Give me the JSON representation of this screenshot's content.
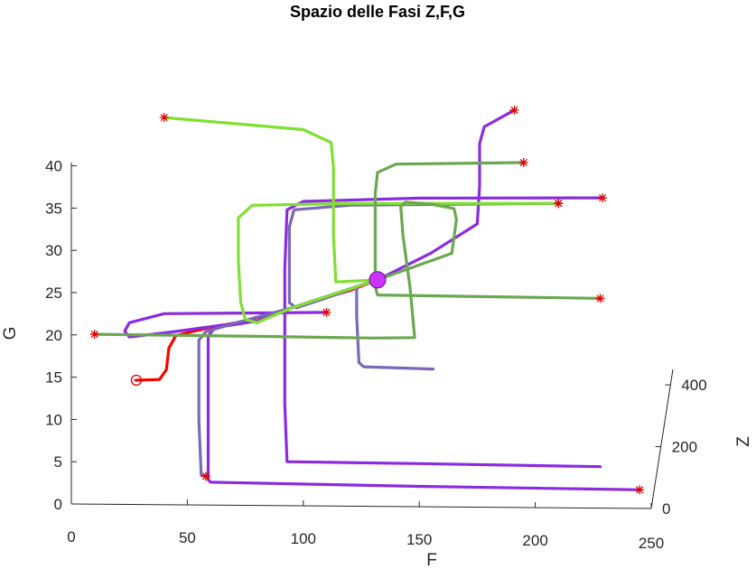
{
  "chart_data": {
    "type": "line",
    "projection": "3d",
    "title": "Spazio delle Fasi Z,F,G",
    "xlabel": "F",
    "ylabel": "G",
    "zlabel": "Z",
    "xlim": [
      0,
      250
    ],
    "ylim": [
      0,
      45
    ],
    "zlim": [
      0,
      450
    ],
    "xticks": [
      "0",
      "50",
      "100",
      "150",
      "200",
      "250"
    ],
    "yticks": [
      "0",
      "5",
      "10",
      "15",
      "20",
      "25",
      "30",
      "35",
      "40"
    ],
    "zticks": [
      "0",
      "200",
      "400"
    ],
    "grid": false,
    "equilibrium": {
      "F": 132,
      "G": 26.8,
      "color": "#cc33ff"
    },
    "series": [
      {
        "color": "#ff0000",
        "start": "circle",
        "points": [
          [
            28,
            14.7
          ],
          [
            38,
            14.8
          ],
          [
            41,
            16
          ],
          [
            42,
            18.5
          ],
          [
            45,
            20
          ],
          [
            52,
            20.5
          ],
          [
            60,
            21
          ],
          [
            75,
            21.8
          ],
          [
            95,
            23.4
          ],
          [
            120,
            25.5
          ],
          [
            132,
            26.8
          ]
        ]
      },
      {
        "color": "#8a2be2",
        "start": "star",
        "points": [
          [
            191,
            47
          ],
          [
            178,
            45
          ],
          [
            176,
            43
          ],
          [
            176,
            38
          ],
          [
            175,
            33.5
          ],
          [
            155,
            30
          ],
          [
            132,
            26.8
          ]
        ]
      },
      {
        "color": "#8a2be2",
        "start": "star",
        "points": [
          [
            229,
            36.7
          ],
          [
            150,
            36.5
          ],
          [
            100,
            36
          ],
          [
            93,
            35
          ],
          [
            92,
            28
          ],
          [
            92,
            20
          ],
          [
            92,
            12
          ],
          [
            93,
            5.2
          ],
          [
            150,
            5.1
          ],
          [
            228,
            4.9
          ]
        ]
      },
      {
        "color": "#8a2be2",
        "start": "star",
        "points": [
          [
            110,
            22.9
          ],
          [
            40,
            22.6
          ],
          [
            25,
            21.5
          ],
          [
            23,
            20.5
          ],
          [
            25,
            19.8
          ],
          [
            45,
            20.5
          ],
          [
            70,
            21.5
          ],
          [
            95,
            23.4
          ],
          [
            132,
            26.8
          ]
        ]
      },
      {
        "color": "#8a2be2",
        "start": "star",
        "points": [
          [
            245,
            2.2
          ],
          [
            150,
            2.4
          ],
          [
            60,
            2.7
          ],
          [
            59,
            3
          ],
          [
            59,
            20
          ],
          [
            62,
            21
          ],
          [
            80,
            21.8
          ],
          [
            95,
            23.4
          ],
          [
            132,
            26.8
          ]
        ]
      },
      {
        "color": "#7b68b8",
        "start": "star",
        "points": [
          [
            210,
            36
          ],
          [
            120,
            35.6
          ],
          [
            96,
            35
          ],
          [
            94,
            33
          ],
          [
            94,
            24
          ],
          [
            97,
            23.4
          ],
          [
            110,
            24.6
          ],
          [
            123,
            25.9
          ],
          [
            123,
            22.5
          ],
          [
            124,
            17
          ],
          [
            126,
            16.5
          ],
          [
            156,
            16.3
          ]
        ]
      },
      {
        "color": "#7b68b8",
        "start": "star",
        "points": [
          [
            58,
            3.4
          ],
          [
            56,
            3.5
          ],
          [
            55,
            10
          ],
          [
            55,
            19.5
          ],
          [
            58,
            20.5
          ],
          [
            70,
            21.5
          ],
          [
            95,
            23.4
          ],
          [
            132,
            26.8
          ]
        ]
      },
      {
        "color": "#7fe030",
        "start": "star",
        "points": [
          [
            40,
            45.8
          ],
          [
            100,
            44.5
          ],
          [
            112,
            43
          ],
          [
            113,
            40
          ],
          [
            113,
            32
          ],
          [
            114,
            26.5
          ],
          [
            132,
            26.8
          ]
        ]
      },
      {
        "color": "#7fe030",
        "start": "star",
        "points": [
          [
            210,
            36
          ],
          [
            120,
            35.8
          ],
          [
            78,
            35.5
          ],
          [
            72,
            34
          ],
          [
            72,
            29
          ],
          [
            73,
            24
          ],
          [
            75,
            22
          ],
          [
            80,
            21.6
          ],
          [
            95,
            23.4
          ],
          [
            132,
            26.8
          ]
        ]
      },
      {
        "color": "#6aa84f",
        "start": "star",
        "points": [
          [
            195,
            40.8
          ],
          [
            140,
            40.5
          ],
          [
            132,
            39.5
          ],
          [
            131,
            37
          ],
          [
            131,
            31
          ],
          [
            131,
            27
          ],
          [
            132,
            26.8
          ]
        ]
      },
      {
        "color": "#6aa84f",
        "start": "star",
        "points": [
          [
            228,
            24.8
          ],
          [
            180,
            24.9
          ],
          [
            132,
            25
          ],
          [
            131,
            26
          ],
          [
            132,
            26.8
          ]
        ]
      },
      {
        "color": "#6aa84f",
        "start": "star",
        "points": [
          [
            10,
            20.1
          ],
          [
            80,
            20
          ],
          [
            130,
            19.9
          ],
          [
            148,
            20
          ],
          [
            146,
            26
          ],
          [
            143,
            32
          ],
          [
            142,
            35.5
          ],
          [
            144,
            36
          ],
          [
            155,
            35.8
          ],
          [
            165,
            35.3
          ],
          [
            166,
            34
          ],
          [
            164,
            30
          ],
          [
            132,
            26.8
          ]
        ]
      }
    ]
  }
}
